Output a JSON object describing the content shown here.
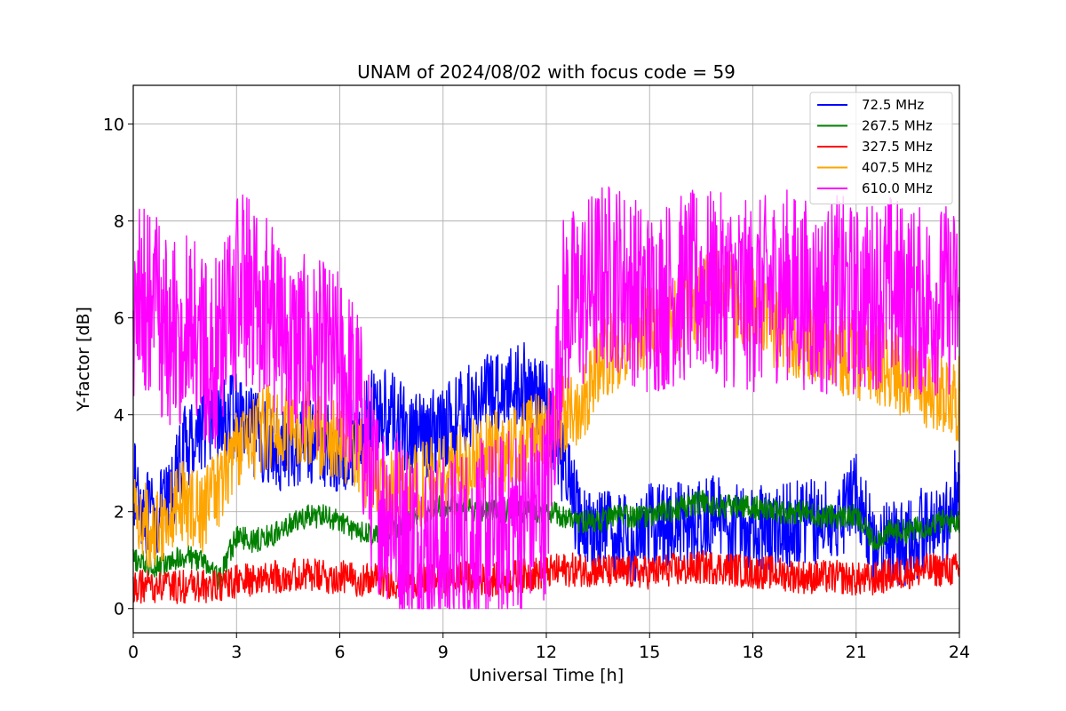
{
  "chart_data": {
    "type": "line",
    "title": "UNAM of 2024/08/02 with focus code = 59",
    "xlabel": "Universal Time [h]",
    "ylabel": "Y-factor [dB]",
    "xlim": [
      0,
      24
    ],
    "ylim": [
      -0.5,
      10.8
    ],
    "xticks": [
      0,
      3,
      6,
      9,
      12,
      15,
      18,
      21,
      24
    ],
    "yticks": [
      0,
      2,
      4,
      6,
      8,
      10
    ],
    "grid": true,
    "legend_position": "top-right",
    "series": [
      {
        "name": " 72.5 MHz",
        "color": "#0000ff",
        "x": [
          0,
          0.5,
          1,
          1.5,
          2,
          2.5,
          3,
          3.5,
          4,
          4.5,
          5,
          5.5,
          6,
          6.5,
          7,
          7.5,
          8,
          8.5,
          9,
          9.5,
          10,
          10.5,
          11,
          11.5,
          12,
          12.5,
          13,
          13.5,
          14,
          14.5,
          15,
          15.5,
          16,
          16.5,
          17,
          17.5,
          18,
          18.5,
          19,
          19.5,
          20,
          20.5,
          21,
          21.5,
          22,
          22.5,
          23,
          23.5,
          24
        ],
        "values": [
          2.6,
          1.8,
          2.1,
          3.3,
          3.8,
          3.9,
          4.0,
          3.6,
          3.4,
          3.2,
          3.5,
          3.4,
          3.2,
          3.5,
          4.1,
          4.0,
          3.6,
          3.5,
          3.8,
          4.0,
          4.3,
          4.5,
          4.6,
          4.6,
          4.2,
          3.0,
          1.7,
          1.6,
          1.5,
          1.4,
          1.7,
          1.8,
          1.7,
          1.8,
          1.9,
          1.7,
          1.7,
          1.6,
          1.7,
          1.8,
          1.8,
          1.9,
          2.4,
          1.4,
          1.3,
          1.3,
          1.7,
          1.5,
          2.8
        ]
      },
      {
        "name": "267.5 MHz",
        "color": "#008000",
        "x": [
          0,
          0.5,
          1,
          1.5,
          2,
          2.5,
          3,
          3.5,
          4,
          4.5,
          5,
          5.5,
          6,
          6.5,
          7,
          7.5,
          8,
          8.5,
          9,
          9.5,
          10,
          10.5,
          11,
          11.5,
          12,
          12.5,
          13,
          13.5,
          14,
          14.5,
          15,
          15.5,
          16,
          16.5,
          17,
          17.5,
          18,
          18.5,
          19,
          19.5,
          20,
          20.5,
          21,
          21.5,
          22,
          22.5,
          23,
          23.5,
          24
        ],
        "values": [
          1.0,
          0.9,
          0.9,
          1.1,
          1.0,
          0.6,
          1.5,
          1.4,
          1.5,
          1.7,
          1.9,
          1.9,
          1.8,
          1.6,
          1.5,
          1.6,
          1.9,
          2.0,
          2.1,
          2.1,
          2.0,
          2.0,
          2.0,
          2.0,
          2.0,
          1.9,
          1.8,
          1.8,
          1.9,
          1.9,
          1.9,
          2.0,
          2.1,
          2.2,
          2.1,
          2.1,
          2.1,
          2.0,
          2.0,
          2.0,
          1.9,
          1.9,
          1.9,
          1.4,
          1.6,
          1.6,
          1.7,
          1.8,
          1.8
        ]
      },
      {
        "name": "327.5 MHz",
        "color": "#ff0000",
        "x": [
          0,
          0.5,
          1,
          1.5,
          2,
          2.5,
          3,
          3.5,
          4,
          4.5,
          5,
          5.5,
          6,
          6.5,
          7,
          7.5,
          8,
          8.5,
          9,
          9.5,
          10,
          10.5,
          11,
          11.5,
          12,
          12.5,
          13,
          13.5,
          14,
          14.5,
          15,
          15.5,
          16,
          16.5,
          17,
          17.5,
          18,
          18.5,
          19,
          19.5,
          20,
          20.5,
          21,
          21.5,
          22,
          22.5,
          23,
          23.5,
          24
        ],
        "values": [
          0.45,
          0.45,
          0.45,
          0.45,
          0.45,
          0.45,
          0.55,
          0.6,
          0.65,
          0.7,
          0.7,
          0.65,
          0.65,
          0.6,
          0.6,
          0.55,
          0.55,
          0.6,
          0.6,
          0.65,
          0.6,
          0.6,
          0.65,
          0.7,
          0.75,
          0.8,
          0.8,
          0.8,
          0.75,
          0.75,
          0.75,
          0.8,
          0.8,
          0.85,
          0.85,
          0.8,
          0.75,
          0.75,
          0.7,
          0.65,
          0.65,
          0.65,
          0.6,
          0.6,
          0.7,
          0.75,
          0.8,
          0.8,
          0.8
        ]
      },
      {
        "name": "407.5 MHz",
        "color": "#ffa500",
        "x": [
          0,
          0.5,
          1,
          1.5,
          2,
          2.5,
          3,
          3.5,
          4,
          4.5,
          5,
          5.5,
          6,
          6.5,
          7,
          7.5,
          8,
          8.5,
          9,
          9.5,
          10,
          10.5,
          11,
          11.5,
          12,
          12.5,
          13,
          13.5,
          14,
          14.5,
          15,
          15.5,
          16,
          16.5,
          17,
          17.5,
          18,
          18.5,
          19,
          19.5,
          20,
          20.5,
          21,
          21.5,
          22,
          22.5,
          23,
          23.5,
          24
        ],
        "values": [
          2.1,
          1.6,
          2.0,
          2.2,
          2.0,
          2.6,
          3.3,
          3.5,
          3.8,
          3.7,
          3.9,
          3.6,
          3.4,
          3.1,
          2.7,
          2.4,
          2.4,
          2.6,
          2.7,
          2.9,
          3.1,
          3.2,
          3.3,
          3.5,
          3.7,
          3.9,
          4.3,
          5.0,
          5.4,
          5.6,
          5.8,
          5.8,
          6.2,
          6.4,
          6.6,
          6.4,
          6.2,
          5.9,
          5.7,
          5.6,
          5.5,
          5.3,
          5.2,
          5.1,
          5.0,
          4.8,
          4.6,
          4.5,
          4.3
        ]
      },
      {
        "name": "610.0 MHz",
        "color": "#ff00ff",
        "x": [
          0,
          0.5,
          1,
          1.5,
          2,
          2.5,
          3,
          3.5,
          4,
          4.5,
          5,
          5.5,
          6,
          6.5,
          7,
          7.5,
          8,
          8.5,
          9,
          9.5,
          10,
          10.5,
          11,
          11.5,
          12,
          12.5,
          13,
          13.5,
          14,
          14.5,
          15,
          15.5,
          16,
          16.5,
          17,
          17.5,
          18,
          18.5,
          19,
          19.5,
          20,
          20.5,
          21,
          21.5,
          22,
          22.5,
          23,
          23.5,
          24
        ],
        "values": [
          6.2,
          6.4,
          5.6,
          5.8,
          5.4,
          5.2,
          6.5,
          6.6,
          6.1,
          5.5,
          5.3,
          5.2,
          5.0,
          4.4,
          2.4,
          2.0,
          1.6,
          1.3,
          1.2,
          1.4,
          1.5,
          1.6,
          1.8,
          2.0,
          2.2,
          6.2,
          6.4,
          6.8,
          6.9,
          6.6,
          6.3,
          6.5,
          6.6,
          6.7,
          6.6,
          6.5,
          6.4,
          6.6,
          6.7,
          6.5,
          6.3,
          6.6,
          6.3,
          6.5,
          6.6,
          6.4,
          6.3,
          6.4,
          6.3
        ]
      }
    ]
  }
}
